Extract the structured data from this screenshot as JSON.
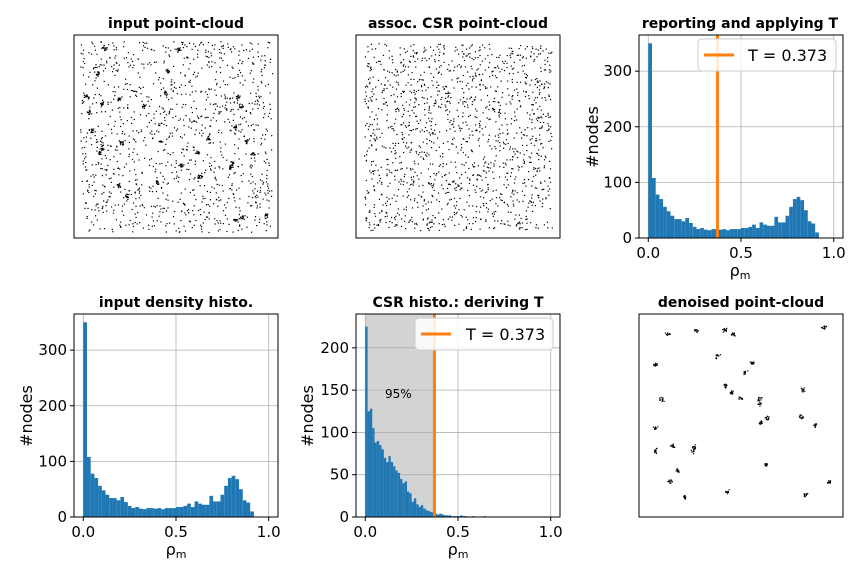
{
  "colors": {
    "bar": "#1f77b4",
    "threshold": "#ff7f0e",
    "shade": "#d3d3d3",
    "points": "#000000"
  },
  "threshold_label": "T = 0.373",
  "percent_label": "95%",
  "chart_data": [
    {
      "id": "input-pointcloud",
      "type": "scatter",
      "title": "input point-cloud",
      "description_values": {
        "uniform_points": 1200,
        "clusters": 32
      }
    },
    {
      "id": "csr-pointcloud",
      "type": "scatter",
      "title": "assoc. CSR point-cloud",
      "description_values": {
        "uniform_points": 1500
      }
    },
    {
      "id": "reporting-histo",
      "type": "bar",
      "title": "reporting and applying T",
      "xlabel": "ρm",
      "ylabel": "#nodes",
      "xlim": [
        -0.05,
        1.05
      ],
      "ylim": [
        0,
        365
      ],
      "xticks": [
        0.0,
        0.5,
        1.0
      ],
      "xticklabels": [
        "0.0",
        "0.5",
        "1.0"
      ],
      "yticks": [
        0,
        100,
        200,
        300
      ],
      "yticklabels": [
        "0",
        "100",
        "200",
        "300"
      ],
      "bin_start": 0.0,
      "bin_width": 0.02,
      "values": [
        350,
        108,
        78,
        70,
        56,
        48,
        40,
        34,
        34,
        30,
        36,
        27,
        20,
        16,
        18,
        15,
        14,
        16,
        16,
        15,
        16,
        14,
        16,
        16,
        16,
        18,
        18,
        20,
        24,
        18,
        28,
        24,
        22,
        22,
        38,
        28,
        28,
        40,
        56,
        70,
        74,
        68,
        50,
        30,
        26,
        10
      ],
      "threshold": 0.373,
      "legend": "T = 0.373",
      "grid": true
    },
    {
      "id": "input-density-histo",
      "type": "bar",
      "title": "input density histo.",
      "xlabel": "ρm",
      "ylabel": "#nodes",
      "xlim": [
        -0.05,
        1.05
      ],
      "ylim": [
        0,
        365
      ],
      "xticks": [
        0.0,
        0.5,
        1.0
      ],
      "xticklabels": [
        "0.0",
        "0.5",
        "1.0"
      ],
      "yticks": [
        0,
        100,
        200,
        300
      ],
      "yticklabels": [
        "0",
        "100",
        "200",
        "300"
      ],
      "bin_start": 0.0,
      "bin_width": 0.02,
      "values": [
        350,
        108,
        78,
        70,
        56,
        48,
        40,
        34,
        34,
        30,
        36,
        27,
        20,
        16,
        18,
        15,
        14,
        16,
        16,
        15,
        16,
        14,
        16,
        16,
        16,
        18,
        18,
        20,
        24,
        18,
        28,
        24,
        22,
        22,
        38,
        28,
        28,
        40,
        56,
        70,
        74,
        68,
        50,
        30,
        26,
        10
      ],
      "grid": true
    },
    {
      "id": "csr-histo",
      "type": "bar",
      "title": "CSR histo.: deriving T",
      "xlabel": "ρm",
      "ylabel": "#nodes",
      "xlim": [
        -0.05,
        1.05
      ],
      "ylim": [
        0,
        240
      ],
      "xticks": [
        0.0,
        0.5,
        1.0
      ],
      "xticklabels": [
        "0.0",
        "0.5",
        "1.0"
      ],
      "yticks": [
        0,
        50,
        100,
        150,
        200
      ],
      "yticklabels": [
        "0",
        "50",
        "100",
        "150",
        "200"
      ],
      "bin_start": 0.0,
      "bin_width": 0.0125,
      "values": [
        225,
        125,
        128,
        105,
        88,
        90,
        85,
        80,
        70,
        65,
        72,
        65,
        60,
        55,
        52,
        45,
        40,
        42,
        30,
        28,
        18,
        22,
        15,
        12,
        14,
        10,
        8,
        7,
        6,
        5,
        4,
        3,
        4,
        3,
        2,
        2,
        2,
        1,
        1,
        1,
        1,
        2,
        1,
        1,
        0,
        0,
        1,
        0,
        0,
        0,
        0,
        1,
        0
      ],
      "threshold": 0.373,
      "shaded_range": [
        0.0,
        0.373
      ],
      "shaded_label": "95%",
      "legend": "T = 0.373",
      "grid": true
    },
    {
      "id": "denoised-pointcloud",
      "type": "scatter",
      "title": "denoised point-cloud",
      "description_values": {
        "clusters": 32
      }
    }
  ]
}
